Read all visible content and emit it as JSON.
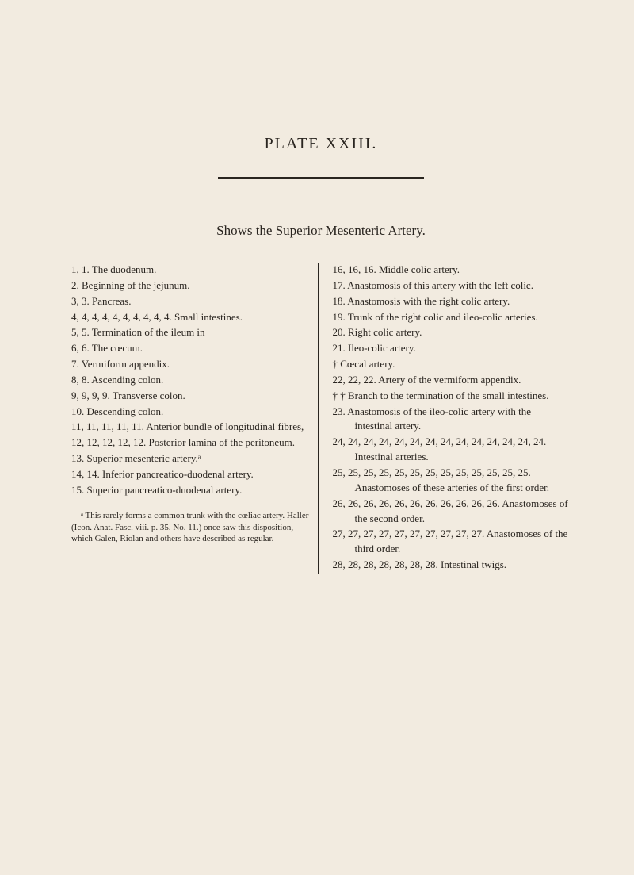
{
  "page": {
    "plate_title": "PLATE XXIII.",
    "subtitle": "Shows the Superior Mesenteric Artery.",
    "background_color": "#f2ebe0",
    "text_color": "#2a2520",
    "body_fontsize": 13,
    "title_fontsize": 20,
    "subtitle_fontsize": 17,
    "footnote_fontsize": 11
  },
  "left_entries": [
    "1, 1. The duodenum.",
    "2. Beginning of the jejunum.",
    "3, 3. Pancreas.",
    "4, 4, 4, 4, 4, 4, 4, 4, 4, 4. Small intestines.",
    "5, 5. Termination of the ileum in",
    "6, 6. The cœcum.",
    "7. Vermiform appendix.",
    "8, 8. Ascending colon.",
    "9, 9, 9, 9. Transverse colon.",
    "10. Descending colon.",
    "11, 11, 11, 11, 11. Anterior bundle of longitudinal fibres,",
    "12, 12, 12, 12, 12. Posterior lamina of the peritoneum.",
    "13. Superior mesenteric artery.ᵃ",
    "14, 14. Inferior pancreatico-duodenal artery.",
    "15. Superior pancreatico-duodenal artery."
  ],
  "footnote": "ᵃ This rarely forms a common trunk with the cœliac artery. Haller (Icon. Anat. Fasc. viii. p. 35. No. 11.) once saw this disposition, which Galen, Riolan and others have described as regular.",
  "right_entries": [
    "16, 16, 16. Middle colic artery.",
    "17. Anastomosis of this artery with the left colic.",
    "18. Anastomosis with the right colic artery.",
    "19. Trunk of the right colic and ileo-colic arteries.",
    "20. Right colic artery.",
    "21. Ileo-colic artery.",
    "† Cœcal artery.",
    "22, 22, 22. Artery of the vermiform appendix.",
    "† † Branch to the termination of the small intestines.",
    "23. Anastomosis of the ileo-colic artery with the intestinal artery.",
    "24, 24, 24, 24, 24, 24, 24, 24, 24, 24, 24, 24, 24, 24. Intestinal arteries.",
    "25, 25, 25, 25, 25, 25, 25, 25, 25, 25, 25, 25, 25. Anastomoses of these arteries of the first order.",
    "26, 26, 26, 26, 26, 26, 26, 26, 26, 26, 26. Anastomoses of the second order.",
    "27, 27, 27, 27, 27, 27, 27, 27, 27, 27. Anastomoses of the third order.",
    "28, 28, 28, 28, 28, 28, 28. Intestinal twigs."
  ]
}
